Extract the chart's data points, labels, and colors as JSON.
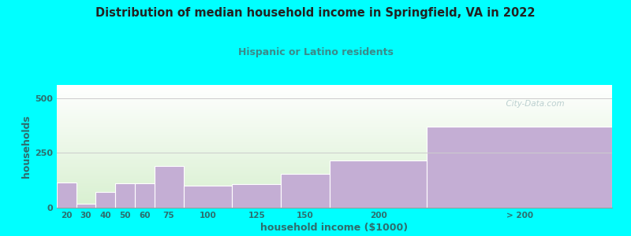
{
  "title": "Distribution of median household income in Springfield, VA in 2022",
  "subtitle": "Hispanic or Latino residents",
  "xlabel": "household income ($1000)",
  "ylabel": "households",
  "background_color": "#00FFFF",
  "bar_color": "#c4aed4",
  "bar_edge_color": "#c4aed4",
  "title_color": "#222222",
  "subtitle_color": "#3a8a8a",
  "axis_label_color": "#2d6e6e",
  "tick_label_color": "#2d6e6e",
  "grid_color": "#cccccc",
  "watermark": "  City-Data.com",
  "categories": [
    "20",
    "30",
    "40",
    "50",
    "60",
    "75",
    "100",
    "125",
    "150",
    "200",
    "> 200"
  ],
  "values": [
    115,
    18,
    72,
    110,
    110,
    190,
    100,
    108,
    155,
    215,
    370
  ],
  "ylim": [
    0,
    560
  ],
  "yticks": [
    0,
    250,
    500
  ],
  "bar_lefts": [
    10,
    20,
    30,
    40,
    50,
    60,
    75,
    100,
    125,
    150,
    200
  ],
  "bar_rights": [
    20,
    30,
    40,
    50,
    60,
    75,
    100,
    125,
    150,
    200,
    295
  ]
}
